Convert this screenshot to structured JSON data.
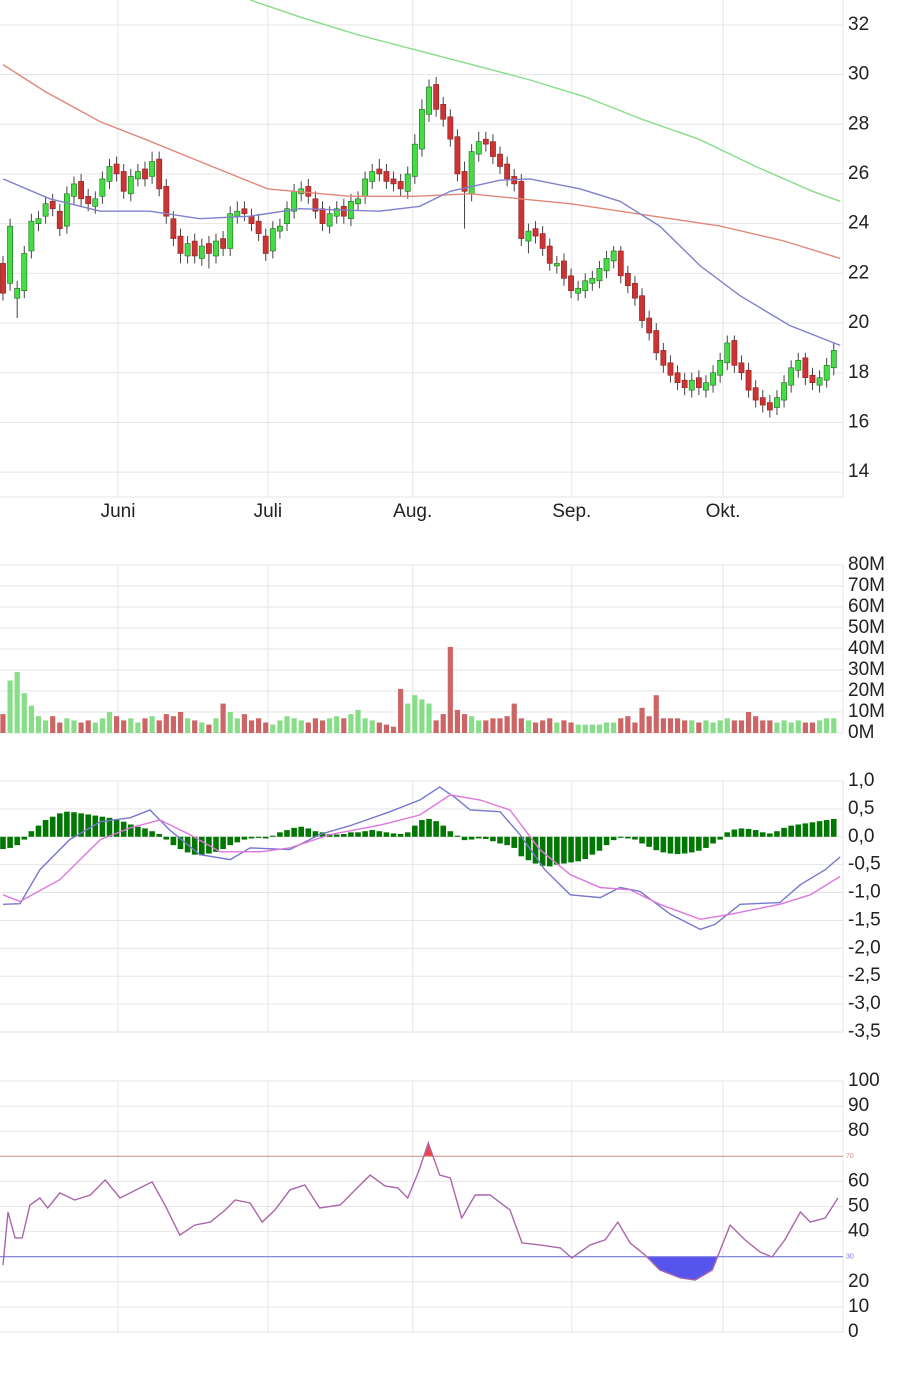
{
  "chart_data": [
    {
      "type": "candlestick",
      "xlim": [
        -0.42,
        118.3
      ],
      "xticks": [
        {
          "value": 16.2,
          "label": "Juni"
        },
        {
          "value": 37.3,
          "label": "Juli"
        },
        {
          "value": 57.7,
          "label": "Aug."
        },
        {
          "value": 80.1,
          "label": "Sep."
        },
        {
          "value": 101.4,
          "label": "Okt."
        }
      ],
      "ylim": [
        13,
        33
      ],
      "yticks": [
        14,
        16,
        18,
        20,
        22,
        24,
        26,
        28,
        30,
        32
      ],
      "grid": true,
      "up_color": "#44dd44",
      "down_color": "#cc3333",
      "open": [
        22.4,
        21.6,
        21.0,
        21.3,
        22.9,
        24.0,
        24.3,
        24.9,
        24.5,
        23.9,
        25.1,
        25.7,
        25.1,
        24.7,
        25.1,
        25.7,
        26.4,
        26.1,
        25.2,
        25.8,
        26.2,
        25.9,
        26.6,
        25.5,
        24.2,
        23.5,
        22.7,
        23.3,
        22.6,
        23.2,
        22.7,
        23.4,
        23.0,
        24.3,
        24.6,
        24.3,
        24.1,
        23.5,
        22.9,
        23.7,
        24.0,
        24.5,
        25.2,
        25.5,
        25.0,
        24.6,
        23.9,
        24.3,
        24.7,
        24.2,
        24.8,
        25.1,
        25.7,
        26.2,
        26.1,
        25.8,
        25.7,
        25.3,
        25.9,
        27.0,
        28.4,
        29.6,
        28.8,
        28.3,
        27.5,
        26.1,
        25.2,
        26.8,
        27.4,
        27.3,
        26.8,
        26.4,
        25.9,
        25.7,
        23.3,
        23.8,
        23.6,
        23.1,
        22.3,
        22.5,
        21.9,
        21.2,
        21.3,
        21.6,
        21.7,
        22.1,
        22.5,
        22.9,
        22.0,
        21.6,
        21.1,
        20.2,
        19.7,
        18.9,
        18.4,
        18.0,
        17.7,
        17.3,
        17.8,
        17.3,
        17.5,
        17.9,
        18.4,
        19.3,
        18.4,
        18.1,
        17.4,
        17.0,
        16.8,
        16.6,
        16.9,
        17.5,
        18.1,
        18.6,
        17.9,
        17.5,
        17.7,
        18.2
      ],
      "high": [
        22.7,
        24.2,
        21.7,
        23.1,
        24.4,
        24.5,
        25.1,
        25.2,
        24.8,
        25.5,
        25.9,
        26.0,
        25.4,
        25.3,
        26.1,
        26.6,
        26.7,
        26.4,
        26.2,
        26.4,
        26.5,
        26.9,
        26.9,
        25.8,
        24.5,
        23.8,
        23.5,
        23.6,
        23.4,
        23.5,
        23.6,
        23.7,
        24.7,
        24.9,
        24.9,
        24.6,
        24.4,
        23.8,
        24.1,
        24.2,
        24.9,
        25.6,
        25.7,
        25.8,
        25.3,
        24.9,
        24.7,
        24.9,
        25.0,
        25.2,
        25.3,
        26.1,
        26.4,
        26.6,
        26.4,
        26.1,
        26.0,
        26.3,
        27.6,
        29.0,
        29.8,
        29.9,
        29.1,
        28.6,
        27.8,
        26.5,
        27.2,
        27.7,
        27.7,
        27.6,
        27.1,
        26.7,
        26.2,
        26.0,
        24.0,
        24.1,
        23.9,
        23.4,
        22.7,
        22.8,
        22.2,
        21.7,
        22.0,
        22.1,
        22.5,
        22.9,
        23.1,
        23.1,
        22.3,
        21.9,
        21.4,
        20.5,
        20.0,
        19.2,
        18.7,
        18.3,
        18.0,
        18.0,
        18.1,
        17.9,
        18.3,
        18.8,
        19.5,
        19.5,
        18.7,
        18.4,
        17.7,
        17.3,
        17.1,
        17.3,
        17.9,
        18.5,
        18.8,
        18.8,
        18.2,
        18.1,
        18.6,
        19.2
      ],
      "low": [
        20.9,
        21.3,
        20.2,
        21.0,
        22.6,
        23.7,
        24.0,
        24.3,
        23.5,
        23.6,
        24.8,
        24.7,
        24.5,
        24.4,
        24.8,
        25.4,
        25.7,
        25.0,
        24.9,
        25.5,
        25.5,
        25.6,
        25.1,
        24.0,
        23.1,
        22.4,
        22.4,
        22.4,
        22.3,
        22.2,
        22.4,
        22.7,
        22.7,
        24.0,
        24.1,
        23.7,
        23.3,
        22.5,
        22.6,
        23.4,
        23.7,
        24.2,
        24.9,
        24.8,
        24.2,
        23.7,
        23.6,
        24.0,
        24.0,
        23.9,
        24.5,
        24.8,
        25.4,
        25.7,
        25.4,
        25.3,
        25.1,
        25.0,
        25.6,
        26.7,
        28.1,
        28.3,
        27.9,
        27.1,
        25.7,
        23.8,
        24.9,
        26.5,
        26.9,
        26.4,
        26.0,
        25.5,
        25.3,
        23.1,
        22.8,
        23.2,
        22.7,
        22.1,
        22.0,
        21.5,
        21.0,
        20.9,
        21.0,
        21.3,
        21.4,
        21.8,
        22.2,
        21.6,
        21.2,
        20.7,
        19.8,
        19.3,
        18.5,
        18.0,
        17.6,
        17.3,
        17.1,
        17.0,
        17.1,
        17.0,
        17.2,
        17.6,
        18.1,
        18.0,
        17.7,
        17.0,
        16.6,
        16.4,
        16.2,
        16.3,
        16.6,
        17.2,
        17.8,
        17.5,
        17.3,
        17.2,
        17.4,
        17.9
      ],
      "close": [
        21.2,
        23.9,
        21.4,
        22.8,
        24.1,
        24.2,
        24.8,
        24.6,
        23.8,
        25.2,
        25.6,
        25.0,
        24.8,
        25.0,
        25.8,
        26.3,
        26.0,
        25.3,
        25.9,
        26.1,
        25.8,
        26.5,
        25.4,
        24.3,
        23.4,
        22.8,
        23.2,
        22.7,
        23.1,
        22.8,
        23.3,
        23.0,
        24.4,
        24.5,
        24.4,
        24.0,
        23.6,
        22.8,
        23.8,
        23.9,
        24.6,
        25.3,
        25.4,
        25.1,
        24.5,
        24.0,
        24.4,
        24.6,
        24.3,
        24.9,
        25.0,
        25.8,
        26.1,
        26.0,
        25.7,
        25.6,
        25.4,
        26.0,
        27.2,
        28.6,
        29.5,
        28.6,
        28.2,
        27.4,
        26.0,
        25.3,
        26.9,
        27.3,
        27.2,
        26.7,
        26.3,
        25.8,
        25.6,
        23.4,
        23.7,
        23.5,
        23.0,
        22.4,
        22.4,
        21.8,
        21.3,
        21.4,
        21.7,
        21.8,
        22.2,
        22.6,
        22.9,
        21.9,
        21.5,
        21.0,
        20.1,
        19.6,
        18.8,
        18.3,
        17.9,
        17.6,
        17.4,
        17.7,
        17.4,
        17.6,
        18.0,
        18.5,
        19.2,
        18.3,
        18.0,
        17.3,
        16.9,
        16.7,
        16.5,
        17.0,
        17.6,
        18.2,
        18.5,
        17.8,
        17.6,
        17.8,
        18.3,
        18.9
      ],
      "series": [
        {
          "color": "#88dd88",
          "x": [
            34.8,
            42,
            50,
            58,
            66,
            74,
            82,
            90,
            98,
            106,
            114,
            117.9
          ],
          "values": [
            33.0,
            32.3,
            31.6,
            31.0,
            30.4,
            29.8,
            29.1,
            28.2,
            27.4,
            26.3,
            25.3,
            24.9
          ]
        },
        {
          "color": "#e08878",
          "x": [
            0,
            6,
            13.7,
            20,
            27.7,
            37.3,
            48.9,
            58,
            65.8,
            72.8,
            80,
            86.9,
            94,
            101,
            110,
            117.9
          ],
          "values": [
            30.4,
            29.3,
            28.1,
            27.4,
            26.5,
            25.4,
            25.1,
            25.1,
            25.2,
            25.0,
            24.8,
            24.5,
            24.2,
            23.9,
            23.3,
            22.6
          ]
        },
        {
          "color": "#8080cc",
          "x": [
            0,
            6.6,
            13.7,
            20.7,
            27.7,
            34.8,
            41.8,
            53,
            58.7,
            63,
            70,
            74.2,
            81.3,
            86.9,
            92.5,
            98.2,
            103.8,
            110.8,
            117.9
          ],
          "values": [
            25.8,
            25.0,
            24.5,
            24.5,
            24.2,
            24.3,
            24.6,
            24.5,
            24.7,
            25.3,
            25.75,
            25.8,
            25.4,
            24.9,
            23.9,
            22.3,
            21.1,
            19.9,
            19.1
          ]
        }
      ]
    },
    {
      "type": "bar",
      "ylim": [
        0,
        80
      ],
      "yticks": [
        {
          "value": 0,
          "label": "0M"
        },
        {
          "value": 10,
          "label": "10M"
        },
        {
          "value": 20,
          "label": "20M"
        },
        {
          "value": 30,
          "label": "30M"
        },
        {
          "value": 40,
          "label": "40M"
        },
        {
          "value": 50,
          "label": "50M"
        },
        {
          "value": 60,
          "label": "60M"
        },
        {
          "value": 70,
          "label": "70M"
        },
        {
          "value": 80,
          "label": "80M"
        }
      ],
      "up_color": "#88dd88",
      "down_color": "#cc6666",
      "values": [
        9,
        25,
        29,
        19,
        13,
        8,
        6,
        8,
        5,
        7,
        6,
        5,
        6,
        5,
        7,
        10,
        8,
        6,
        7,
        5,
        7,
        8,
        6,
        9,
        8,
        10,
        7,
        6,
        5,
        4,
        7,
        14,
        10,
        7,
        9,
        6,
        7,
        5,
        4,
        6,
        8,
        7,
        6,
        5,
        7,
        6,
        7,
        8,
        7,
        9,
        11,
        7,
        6,
        5,
        4,
        3,
        21,
        14,
        18,
        16,
        14,
        6,
        9,
        41,
        11,
        9,
        8,
        6,
        6,
        7,
        7,
        8,
        14,
        7,
        6,
        5,
        6,
        7,
        5,
        6,
        5,
        4,
        4,
        4,
        4,
        5,
        5,
        7,
        8,
        5,
        12,
        8,
        18,
        7,
        7,
        7,
        6,
        6,
        5,
        6,
        5,
        6,
        7,
        6,
        6,
        10,
        8,
        6,
        6,
        5,
        6,
        5,
        6,
        5,
        5,
        6,
        7,
        7
      ]
    },
    {
      "type": "macd",
      "ylim": [
        -3.5,
        1.0
      ],
      "yticks": [
        {
          "value": 1.0,
          "label": "1,0"
        },
        {
          "value": 0.5,
          "label": "0,5"
        },
        {
          "value": 0,
          "label": "0,0"
        },
        {
          "value": -0.5,
          "label": "-0,5"
        },
        {
          "value": -1.0,
          "label": "-1,0"
        },
        {
          "value": -1.5,
          "label": "-1,5"
        },
        {
          "value": -2.0,
          "label": "-2,0"
        },
        {
          "value": -2.5,
          "label": "-2,5"
        },
        {
          "value": -3.0,
          "label": "-3,0"
        },
        {
          "value": -3.5,
          "label": "-3,5"
        }
      ],
      "color": "#007700",
      "values": [
        -0.22,
        -0.2,
        -0.15,
        -0.05,
        0.1,
        0.2,
        0.3,
        0.36,
        0.42,
        0.45,
        0.44,
        0.42,
        0.4,
        0.38,
        0.36,
        0.34,
        0.3,
        0.27,
        0.22,
        0.18,
        0.15,
        0.1,
        0.05,
        -0.05,
        -0.15,
        -0.22,
        -0.28,
        -0.32,
        -0.33,
        -0.3,
        -0.27,
        -0.22,
        -0.15,
        -0.1,
        -0.05,
        -0.03,
        -0.02,
        -0.03,
        0.02,
        0.08,
        0.12,
        0.16,
        0.18,
        0.15,
        0.1,
        0.08,
        0.05,
        0.04,
        0.05,
        0.08,
        0.08,
        0.1,
        0.12,
        0.1,
        0.08,
        0.06,
        0.05,
        0.08,
        0.2,
        0.3,
        0.32,
        0.28,
        0.2,
        0.1,
        0.02,
        -0.06,
        -0.05,
        -0.03,
        -0.04,
        -0.08,
        -0.12,
        -0.15,
        -0.2,
        -0.35,
        -0.42,
        -0.48,
        -0.52,
        -0.53,
        -0.5,
        -0.48,
        -0.46,
        -0.44,
        -0.4,
        -0.32,
        -0.25,
        -0.15,
        -0.06,
        -0.02,
        -0.03,
        -0.05,
        -0.12,
        -0.18,
        -0.24,
        -0.28,
        -0.3,
        -0.31,
        -0.3,
        -0.28,
        -0.25,
        -0.2,
        -0.12,
        -0.05,
        0.08,
        0.13,
        0.15,
        0.14,
        0.12,
        0.08,
        0.06,
        0.1,
        0.16,
        0.2,
        0.22,
        0.24,
        0.26,
        0.28,
        0.3,
        0.32
      ],
      "series": [
        {
          "color": "#7777cc",
          "x": [
            0,
            2.4,
            5.2,
            9.4,
            13.7,
            17.9,
            20.7,
            23.5,
            27.7,
            32,
            34.8,
            40.4,
            44.6,
            48.9,
            54.5,
            58.7,
            61.5,
            63.7,
            65.8,
            70,
            72.8,
            76.3,
            79.9,
            84.1,
            86.9,
            89.7,
            94,
            98.2,
            100.3,
            103.8,
            109.4,
            112.3,
            115.8,
            117.9
          ],
          "values": [
            -1.21,
            -1.2,
            -0.59,
            -0.05,
            0.27,
            0.34,
            0.48,
            0.12,
            -0.32,
            -0.41,
            -0.2,
            -0.23,
            0.04,
            0.2,
            0.45,
            0.66,
            0.89,
            0.7,
            0.48,
            0.45,
            0.04,
            -0.59,
            -1.04,
            -1.09,
            -0.91,
            -0.98,
            -1.39,
            -1.66,
            -1.57,
            -1.21,
            -1.18,
            -0.86,
            -0.59,
            -0.36
          ]
        },
        {
          "color": "#dd77dd",
          "x": [
            0,
            2.4,
            8,
            13.7,
            17.9,
            22.1,
            26.3,
            30.6,
            36.2,
            40.4,
            46.1,
            53.1,
            58.7,
            63,
            67.2,
            71.4,
            75.6,
            79.9,
            84.1,
            88.3,
            92.5,
            98.2,
            102.4,
            109.4,
            113.7,
            117.9
          ],
          "values": [
            -1.04,
            -1.16,
            -0.77,
            -0.05,
            0.16,
            0.3,
            0.04,
            -0.27,
            -0.27,
            -0.2,
            0.04,
            0.21,
            0.39,
            0.75,
            0.66,
            0.48,
            -0.23,
            -0.68,
            -0.91,
            -0.95,
            -1.21,
            -1.48,
            -1.39,
            -1.21,
            -1.04,
            -0.71
          ]
        }
      ]
    },
    {
      "type": "line",
      "ylim": [
        0,
        100
      ],
      "yticks": [
        0,
        10,
        20,
        40,
        50,
        60,
        80,
        90,
        100
      ],
      "levels": [
        {
          "value": 70,
          "color": "#d49a8a",
          "fill": "#ee4444"
        },
        {
          "value": 30,
          "color": "#7777dd",
          "fill": "#5555ee"
        }
      ],
      "series": [
        {
          "color": "#aa66aa",
          "x": [
            0,
            0.7,
            1.7,
            2.7,
            3.8,
            5.2,
            6.3,
            8,
            10.1,
            12.3,
            14.4,
            16.5,
            19.3,
            21,
            22.8,
            24.9,
            27,
            29.2,
            31.3,
            32.7,
            34.8,
            36.5,
            38.3,
            40.4,
            42.5,
            44.6,
            47.5,
            49.6,
            51.7,
            53.8,
            55.6,
            57,
            58.5,
            59.9,
            61.5,
            63,
            64.6,
            66.5,
            68.6,
            71.4,
            73.1,
            75.6,
            78.5,
            80.1,
            82.7,
            84.8,
            86.6,
            88.3,
            90.4,
            92.5,
            95.4,
            97.5,
            99.9,
            102.4,
            104.5,
            106.6,
            108.3,
            110.1,
            112.3,
            113.7,
            115.8,
            117.6
          ],
          "values": [
            26.7,
            47.8,
            37.5,
            37.5,
            50.6,
            53.4,
            49.4,
            55.4,
            52.6,
            54.6,
            60.6,
            53.4,
            57.4,
            59.8,
            50.6,
            38.6,
            42.6,
            43.8,
            48.6,
            52.6,
            51.4,
            43.8,
            48.6,
            56.6,
            58.6,
            49.4,
            50.6,
            56.6,
            62.5,
            58.2,
            57.4,
            53.4,
            63.7,
            75.3,
            62.5,
            61.4,
            45.4,
            54.6,
            54.6,
            48.6,
            35.5,
            34.7,
            33.5,
            29.5,
            34.7,
            36.7,
            43.8,
            35.5,
            30.7,
            24.7,
            21.5,
            20.7,
            24.7,
            42.6,
            36.7,
            31.9,
            29.9,
            36.7,
            47.8,
            43.8,
            45.4,
            53.4
          ]
        }
      ]
    }
  ]
}
